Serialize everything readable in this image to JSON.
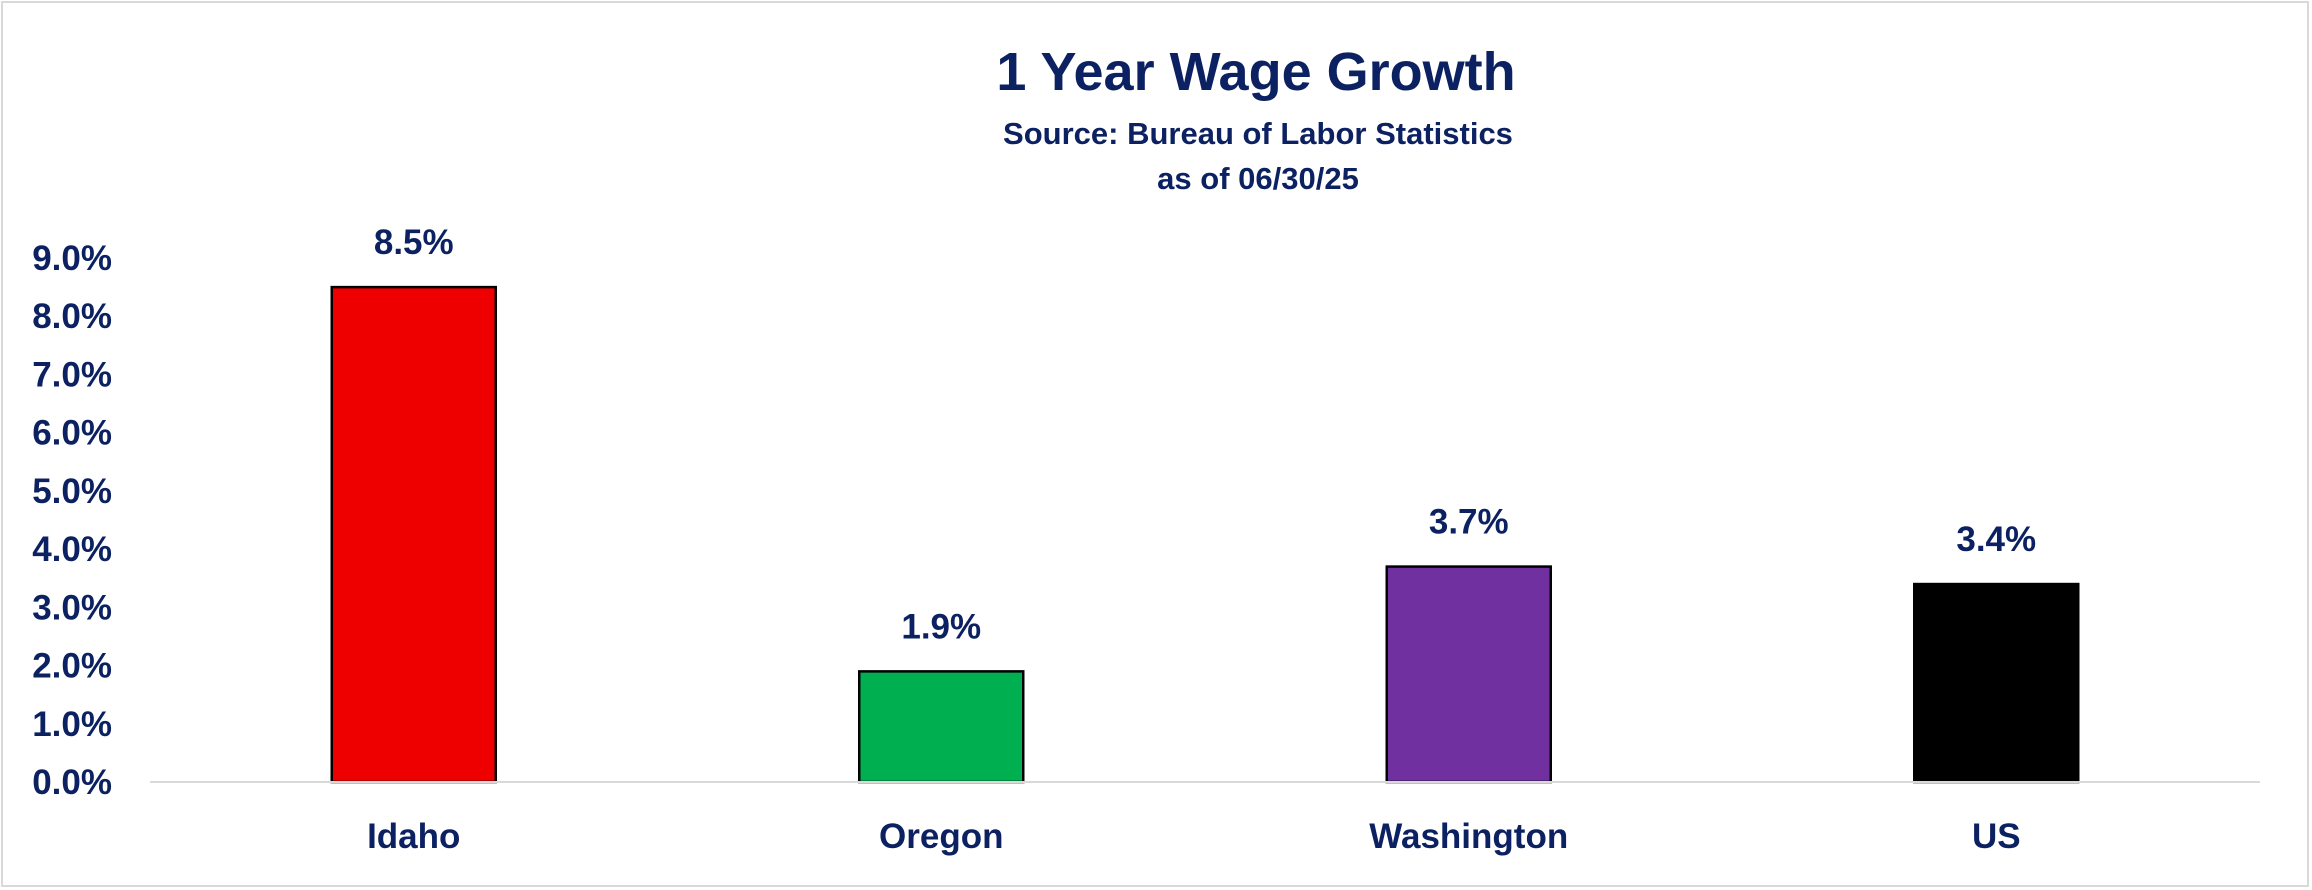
{
  "chart_data": {
    "type": "bar",
    "title": "1 Year Wage Growth",
    "subtitle_lines": [
      "Source: Bureau of Labor Statistics",
      "as of 06/30/25"
    ],
    "xlabel": "",
    "ylabel": "",
    "categories": [
      "Idaho",
      "Oregon",
      "Washington",
      "US"
    ],
    "values": [
      8.5,
      1.9,
      3.7,
      3.4
    ],
    "data_labels": [
      "8.5%",
      "1.9%",
      "3.7%",
      "3.4%"
    ],
    "bar_colors": [
      "#ee0000",
      "#00b050",
      "#7030a0",
      "#000000"
    ],
    "ylim": [
      0,
      9
    ],
    "yticks": [
      0,
      1,
      2,
      3,
      4,
      5,
      6,
      7,
      8,
      9
    ],
    "ytick_labels": [
      "0.0%",
      "1.0%",
      "2.0%",
      "3.0%",
      "4.0%",
      "5.0%",
      "6.0%",
      "7.0%",
      "8.0%",
      "9.0%"
    ],
    "grid": false,
    "legend": "none"
  },
  "colors": {
    "text": "#0c2161",
    "axis_line": "#d9d9d9",
    "bar_outline": "#000000"
  }
}
